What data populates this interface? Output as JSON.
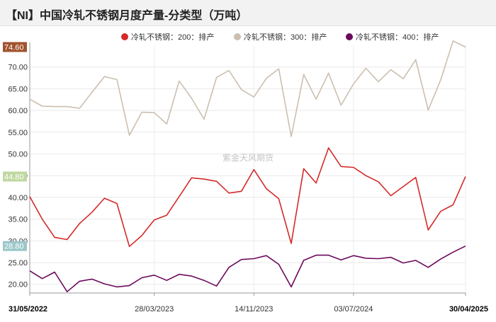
{
  "chart_data": {
    "type": "line",
    "title": "【NI】中国冷轧不锈钢月度产量-分类型（万吨）",
    "watermark": "紫金天风期货",
    "ylim": [
      18,
      75
    ],
    "yticks": [
      "20.00",
      "25.00",
      "30.00",
      "35.00",
      "40.00",
      "45.00",
      "50.00",
      "55.00",
      "60.00",
      "65.00",
      "70.00"
    ],
    "yticks_values": [
      20,
      25,
      30,
      35,
      40,
      45,
      50,
      55,
      60,
      65,
      70
    ],
    "xtick_labels": [
      {
        "label": "31/05/2022",
        "index": 0,
        "bold": true
      },
      {
        "label": "28/03/2023",
        "index": 10,
        "bold": false
      },
      {
        "label": "14/11/2023",
        "index": 18,
        "bold": false
      },
      {
        "label": "03/07/2024",
        "index": 26,
        "bold": false
      },
      {
        "label": "30/04/2025",
        "index": 35,
        "bold": true
      }
    ],
    "legend_position": "top",
    "last_value_labels": true,
    "x": [
      "2022-05",
      "2022-06",
      "2022-07",
      "2022-08",
      "2022-09",
      "2022-10",
      "2022-11",
      "2022-12",
      "2023-01",
      "2023-02",
      "2023-03",
      "2023-04",
      "2023-05",
      "2023-06",
      "2023-07",
      "2023-08",
      "2023-09",
      "2023-10",
      "2023-11",
      "2023-12",
      "2024-01",
      "2024-02",
      "2024-03",
      "2024-04",
      "2024-05",
      "2024-06",
      "2024-07",
      "2024-08",
      "2024-09",
      "2024-10",
      "2024-11",
      "2024-12",
      "2025-01",
      "2025-02",
      "2025-03",
      "2025-04"
    ],
    "series": [
      {
        "name": "冷轧不锈钢：200：排产",
        "color": "#d42a2a",
        "last_label": "44.80",
        "last_label_bg": "#bfd8a0",
        "values": [
          40.2,
          35.0,
          30.8,
          30.3,
          34.0,
          36.6,
          39.8,
          38.6,
          28.7,
          31.2,
          34.8,
          35.9,
          40.2,
          44.5,
          44.2,
          43.7,
          41.0,
          41.4,
          46.4,
          42.0,
          39.7,
          29.4,
          46.6,
          43.3,
          51.4,
          47.1,
          46.9,
          45.0,
          43.6,
          40.4,
          42.5,
          44.6,
          32.5,
          36.8,
          38.3,
          44.8
        ]
      },
      {
        "name": "冷轧不锈钢：300：排产",
        "color": "#ccbfb0",
        "last_label": "74.60",
        "last_label_bg": "#a0522d",
        "values": [
          62.6,
          61.0,
          60.9,
          60.9,
          60.5,
          64.2,
          67.8,
          67.1,
          54.3,
          59.6,
          59.5,
          56.9,
          66.8,
          62.8,
          58.0,
          67.6,
          69.2,
          64.8,
          63.1,
          67.4,
          69.6,
          54.0,
          68.3,
          62.6,
          68.6,
          61.2,
          66.1,
          69.7,
          66.6,
          69.4,
          67.3,
          71.7,
          60.1,
          67.0,
          76.0,
          74.6
        ]
      },
      {
        "name": "冷轧不锈钢：400：排产",
        "color": "#6b0a5c",
        "last_label": "28.80",
        "last_label_bg": "#9cc7c9",
        "values": [
          23.1,
          21.3,
          22.8,
          18.3,
          20.7,
          21.2,
          20.1,
          19.4,
          19.7,
          21.5,
          22.1,
          20.9,
          22.3,
          21.9,
          20.9,
          19.6,
          23.9,
          25.7,
          25.9,
          26.6,
          24.6,
          19.4,
          25.5,
          26.7,
          26.7,
          25.6,
          26.6,
          26.0,
          25.9,
          26.2,
          24.9,
          25.5,
          23.9,
          25.8,
          27.4,
          28.8
        ]
      }
    ]
  }
}
